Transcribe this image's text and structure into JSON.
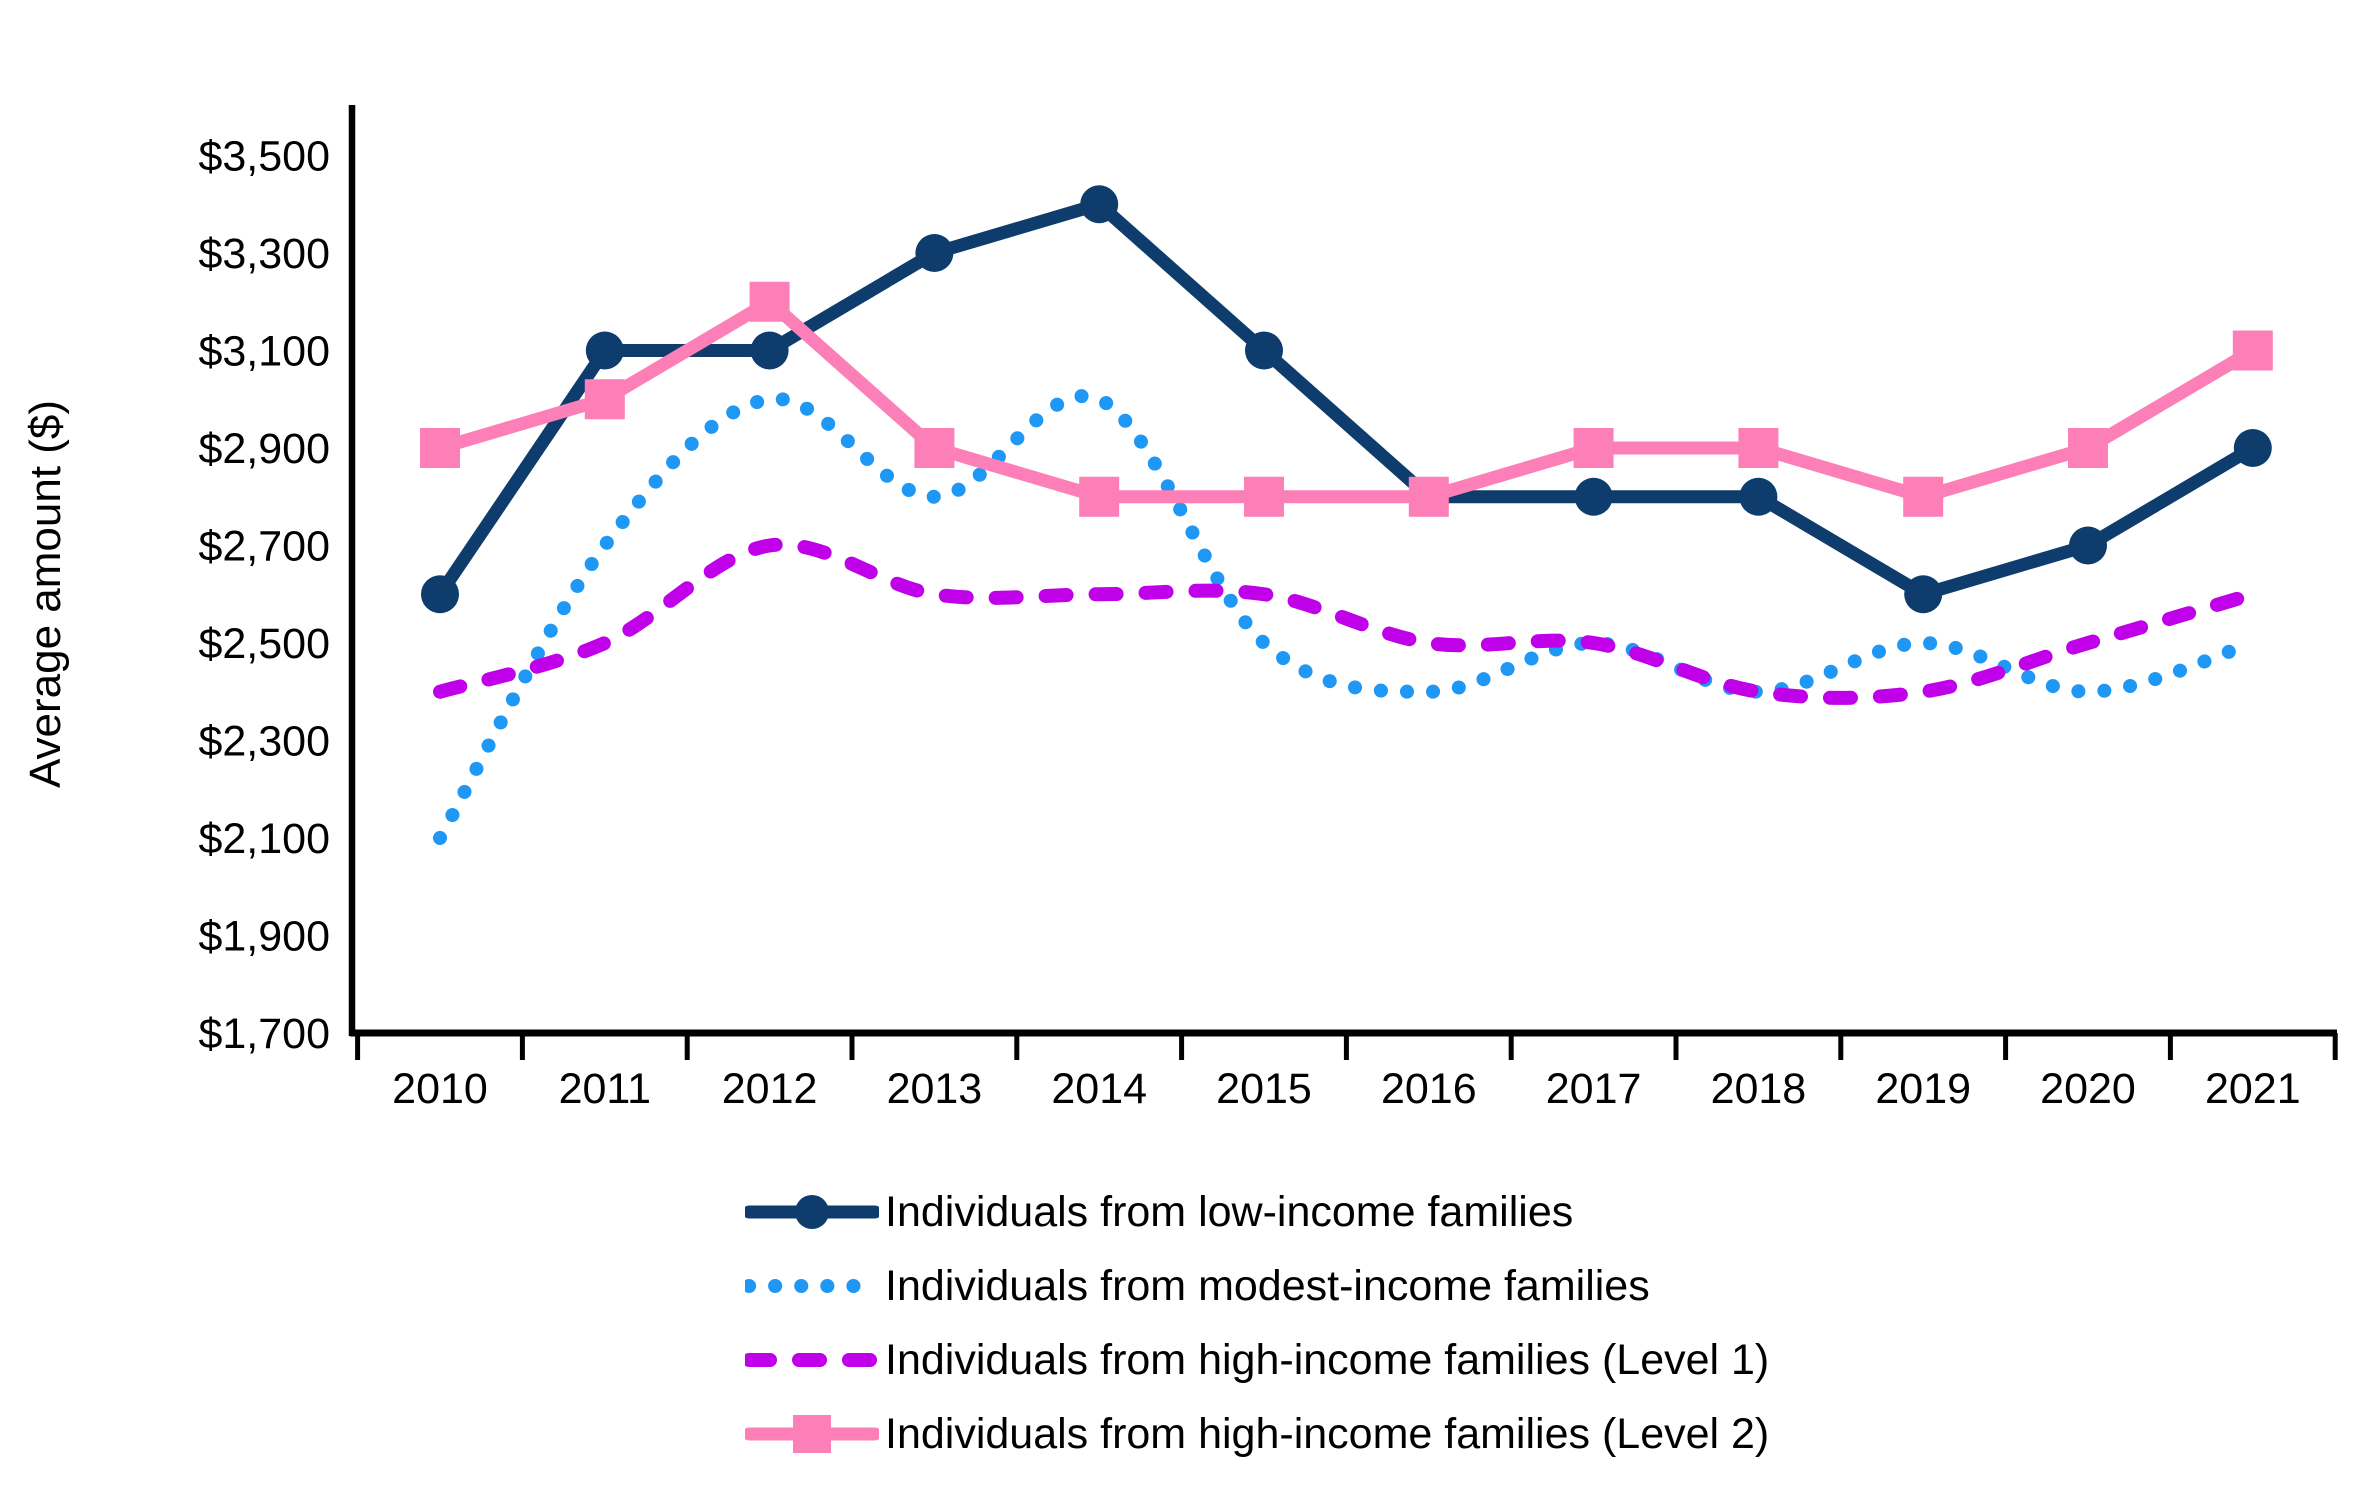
{
  "y_axis_title": "Average amount ($)",
  "chart_data": {
    "type": "line",
    "title": "",
    "xlabel": "",
    "ylabel": "Average amount ($)",
    "categories": [
      "2010",
      "2011",
      "2012",
      "2013",
      "2014",
      "2015",
      "2016",
      "2017",
      "2018",
      "2019",
      "2020",
      "2021"
    ],
    "ylim": [
      1700,
      3500
    ],
    "ytick_step": 200,
    "ytick_labels": [
      "$1,700",
      "$1,900",
      "$2,100",
      "$2,300",
      "$2,500",
      "$2,700",
      "$2,900",
      "$3,100",
      "$3,300",
      "$3,500"
    ],
    "grid": false,
    "legend_position": "bottom",
    "series": [
      {
        "name": "Individuals from low-income families",
        "color": "#0d3c6d",
        "style": "solid",
        "marker": "circle",
        "smooth": false,
        "values": [
          2600,
          3100,
          3100,
          3300,
          3400,
          3100,
          2800,
          2800,
          2800,
          2600,
          2700,
          2900
        ]
      },
      {
        "name": "Individuals from modest-income families",
        "color": "#1f97f4",
        "style": "dotted",
        "marker": "none",
        "smooth": true,
        "values": [
          2100,
          2700,
          3000,
          2800,
          3000,
          2500,
          2400,
          2500,
          2400,
          2500,
          2400,
          2500
        ]
      },
      {
        "name": "Individuals from high-income families (Level 1)",
        "color": "#bf00e8",
        "style": "dashed",
        "marker": "none",
        "smooth": true,
        "values": [
          2400,
          2500,
          2700,
          2600,
          2600,
          2600,
          2500,
          2500,
          2400,
          2400,
          2500,
          2600
        ]
      },
      {
        "name": "Individuals from high-income families (Level 2)",
        "color": "#fc7fb7",
        "style": "solid",
        "marker": "square",
        "smooth": false,
        "values": [
          2900,
          3000,
          3200,
          2900,
          2800,
          2800,
          2800,
          2900,
          2900,
          2800,
          2900,
          3100
        ]
      }
    ]
  }
}
